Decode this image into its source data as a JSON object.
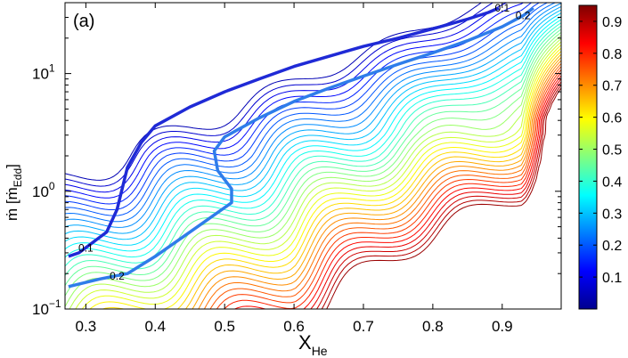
{
  "chart_data": {
    "type": "contour",
    "panel_label": "(a)",
    "xlabel": "X",
    "xlabel_sub": "He",
    "ylabel": "ṁ [ṁ",
    "ylabel_sub": "Edd",
    "ylabel_close": "]",
    "xlim": [
      0.27,
      0.985
    ],
    "ylim": [
      0.1,
      40
    ],
    "yscale": "log",
    "x_ticks": [
      {
        "value": 0.3,
        "label": "0.3"
      },
      {
        "value": 0.4,
        "label": "0.4"
      },
      {
        "value": 0.5,
        "label": "0.5"
      },
      {
        "value": 0.6,
        "label": "0.6"
      },
      {
        "value": 0.7,
        "label": "0.7"
      },
      {
        "value": 0.8,
        "label": "0.8"
      },
      {
        "value": 0.9,
        "label": "0.9"
      }
    ],
    "y_ticks": [
      {
        "value": 0.1,
        "base": "10",
        "exp": "−1"
      },
      {
        "value": 1,
        "base": "10",
        "exp": "0"
      },
      {
        "value": 10,
        "base": "10",
        "exp": "1"
      }
    ],
    "colorbar": {
      "colormap": "jet",
      "range": [
        0,
        0.95
      ],
      "ticks": [
        "0.1",
        "0.2",
        "0.3",
        "0.4",
        "0.5",
        "0.6",
        "0.7",
        "0.8",
        "0.9"
      ]
    },
    "labeled_levels": [
      {
        "level": 0.1,
        "label": "0.1",
        "points": [
          [
            0.275,
            0.28
          ],
          [
            0.29,
            0.3
          ],
          [
            0.33,
            0.45
          ],
          [
            0.345,
            0.7
          ],
          [
            0.36,
            1.6
          ],
          [
            0.38,
            2.6
          ],
          [
            0.4,
            3.6
          ],
          [
            0.45,
            5.2
          ],
          [
            0.5,
            7
          ],
          [
            0.55,
            9
          ],
          [
            0.6,
            11.5
          ],
          [
            0.65,
            14
          ],
          [
            0.7,
            17
          ],
          [
            0.75,
            20
          ],
          [
            0.8,
            24
          ],
          [
            0.85,
            29
          ],
          [
            0.88,
            33
          ],
          [
            0.895,
            36
          ]
        ]
      },
      {
        "level": 0.2,
        "label": "0.2",
        "points": [
          [
            0.275,
            0.155
          ],
          [
            0.32,
            0.18
          ],
          [
            0.36,
            0.2
          ],
          [
            0.4,
            0.28
          ],
          [
            0.45,
            0.45
          ],
          [
            0.51,
            0.8
          ],
          [
            0.51,
            1.05
          ],
          [
            0.49,
            1.5
          ],
          [
            0.485,
            2.2
          ],
          [
            0.5,
            2.9
          ],
          [
            0.55,
            4.2
          ],
          [
            0.6,
            5.8
          ],
          [
            0.65,
            7.5
          ],
          [
            0.7,
            9.5
          ],
          [
            0.75,
            12
          ],
          [
            0.8,
            15
          ],
          [
            0.85,
            19
          ],
          [
            0.9,
            25
          ],
          [
            0.93,
            31
          ],
          [
            0.945,
            36
          ]
        ]
      }
    ],
    "label_positions": [
      {
        "text": "0.1",
        "x": 0.3,
        "y": 0.33
      },
      {
        "text": "0.2",
        "x": 0.345,
        "y": 0.19
      },
      {
        "text": "0.1",
        "x": 0.9,
        "y": 36
      },
      {
        "text": "0.2",
        "x": 0.93,
        "y": 31
      }
    ]
  }
}
